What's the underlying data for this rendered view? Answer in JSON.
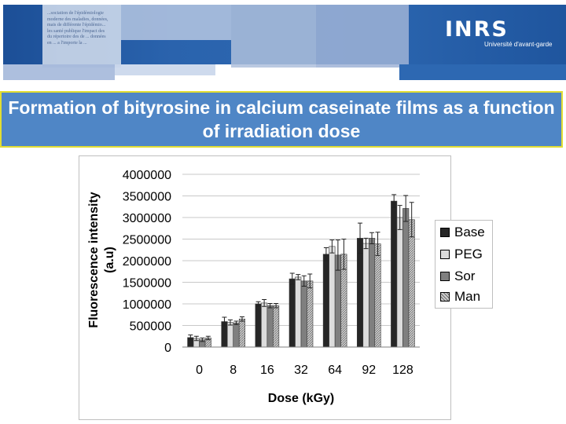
{
  "banner": {
    "logo": "INRS",
    "tagline": "Université d'avant-garde",
    "background_text": "...sociation de l'épidémiologie\nmoderne des maladies, données,\nmais de différente l'épidémio...\nles santé publique l'impact des\ndu répertoire des de ... données\nen ... a l'importe la ..."
  },
  "slide": {
    "title": "Formation of bityrosine in calcium caseinate films as a function of irradiation dose"
  },
  "colors": {
    "banner_blue": "#2a63ad",
    "title_fill": "#4f86c6",
    "title_border": "#e2dd32"
  },
  "chart_data": {
    "type": "bar",
    "xlabel": "Dose (kGy)",
    "ylabel": "Fluorescence intensity (a.u)",
    "ylim": [
      0,
      4000000
    ],
    "yticks": [
      "0",
      "500000",
      "1000000",
      "1500000",
      "2000000",
      "2500000",
      "3000000",
      "3500000",
      "4000000"
    ],
    "categories": [
      "0",
      "8",
      "16",
      "32",
      "64",
      "92",
      "128"
    ],
    "grid": true,
    "legend_position": "right",
    "series": [
      {
        "name": "Base",
        "color": "#262626",
        "pattern": "solid",
        "values": [
          220000,
          590000,
          1000000,
          1580000,
          2150000,
          2520000,
          3380000
        ],
        "errors": [
          60000,
          100000,
          50000,
          130000,
          150000,
          350000,
          150000
        ]
      },
      {
        "name": "PEG",
        "color": "#dcdcdc",
        "pattern": "solid",
        "values": [
          200000,
          570000,
          1020000,
          1620000,
          2330000,
          2400000,
          3000000
        ],
        "errors": [
          50000,
          60000,
          80000,
          60000,
          150000,
          120000,
          280000
        ]
      },
      {
        "name": "Sor",
        "color": "#7f7f7f",
        "pattern": "solid",
        "values": [
          170000,
          560000,
          960000,
          1530000,
          2130000,
          2520000,
          3210000
        ],
        "errors": [
          40000,
          40000,
          50000,
          120000,
          350000,
          130000,
          300000
        ]
      },
      {
        "name": "Man",
        "color": "#bdbdbd",
        "pattern": "hatch",
        "values": [
          210000,
          650000,
          960000,
          1530000,
          2150000,
          2390000,
          2950000
        ],
        "errors": [
          40000,
          50000,
          50000,
          160000,
          350000,
          270000,
          400000
        ]
      }
    ]
  }
}
